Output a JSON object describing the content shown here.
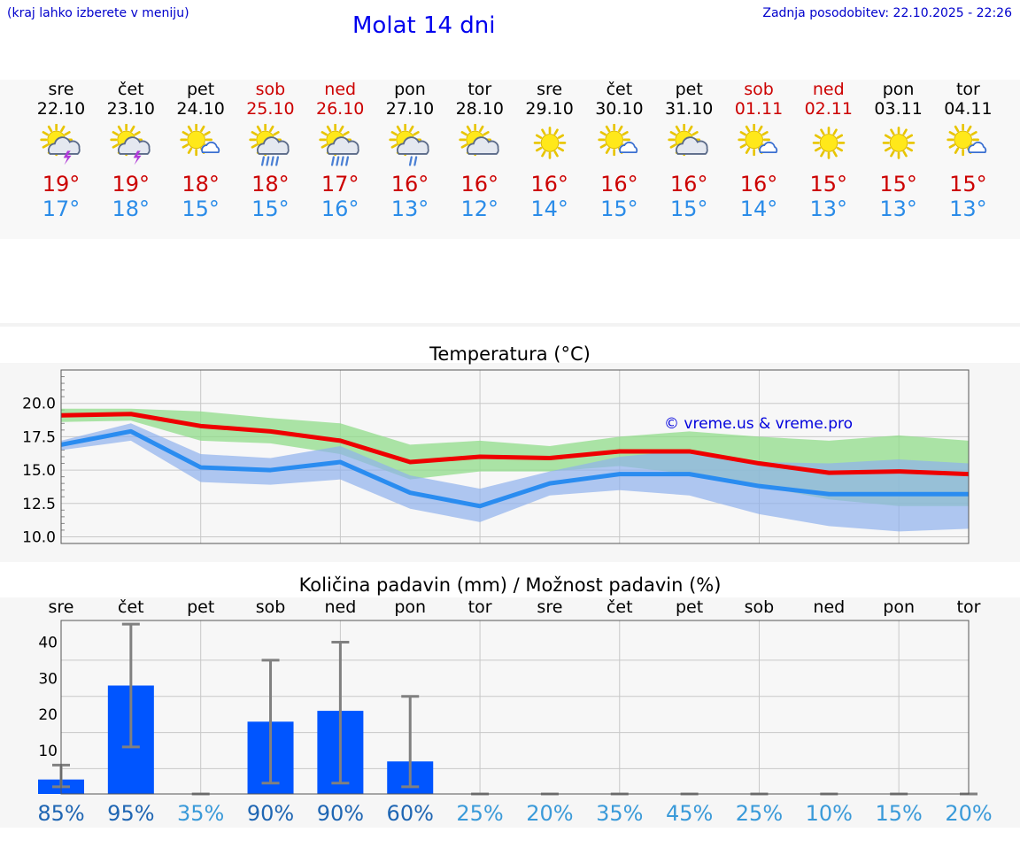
{
  "header": {
    "location_hint": "(kraj lahko izberete v meniju)",
    "title": "Molat 14 dni",
    "last_update": "Zadnja posodobitev: 22.10.2025 - 22:26"
  },
  "forecast": [
    {
      "day": "sre",
      "date": "22.10",
      "icon": "sun-cloud-thunder-icon",
      "max": "19°",
      "min": "17°",
      "weekend": false
    },
    {
      "day": "čet",
      "date": "23.10",
      "icon": "sun-cloud-thunder-icon",
      "max": "19°",
      "min": "18°",
      "weekend": false
    },
    {
      "day": "pet",
      "date": "24.10",
      "icon": "sun-small-cloud-icon",
      "max": "18°",
      "min": "15°",
      "weekend": false
    },
    {
      "day": "sob",
      "date": "25.10",
      "icon": "sun-cloud-rain-icon",
      "max": "18°",
      "min": "15°",
      "weekend": true
    },
    {
      "day": "ned",
      "date": "26.10",
      "icon": "sun-cloud-rain-icon",
      "max": "17°",
      "min": "16°",
      "weekend": true
    },
    {
      "day": "pon",
      "date": "27.10",
      "icon": "sun-cloud-light-rain-icon",
      "max": "16°",
      "min": "13°",
      "weekend": false
    },
    {
      "day": "tor",
      "date": "28.10",
      "icon": "sun-cloud-icon",
      "max": "16°",
      "min": "12°",
      "weekend": false
    },
    {
      "day": "sre",
      "date": "29.10",
      "icon": "sun-icon",
      "max": "16°",
      "min": "14°",
      "weekend": false
    },
    {
      "day": "čet",
      "date": "30.10",
      "icon": "sun-small-cloud-icon",
      "max": "16°",
      "min": "15°",
      "weekend": false
    },
    {
      "day": "pet",
      "date": "31.10",
      "icon": "sun-cloud-icon",
      "max": "16°",
      "min": "15°",
      "weekend": false
    },
    {
      "day": "sob",
      "date": "01.11",
      "icon": "sun-small-cloud-icon",
      "max": "16°",
      "min": "14°",
      "weekend": true
    },
    {
      "day": "ned",
      "date": "02.11",
      "icon": "sun-icon",
      "max": "15°",
      "min": "13°",
      "weekend": true
    },
    {
      "day": "pon",
      "date": "03.11",
      "icon": "sun-icon",
      "max": "15°",
      "min": "13°",
      "weekend": false
    },
    {
      "day": "tor",
      "date": "04.11",
      "icon": "sun-small-cloud-icon",
      "max": "15°",
      "min": "13°",
      "weekend": false
    }
  ],
  "colors": {
    "max_line": "#ee0000",
    "max_band": "#90dc8a",
    "min_line": "#2a8cf0",
    "min_band": "#8fb0ec",
    "bar": "#0055ff",
    "errorbar": "#808080",
    "prob_high": "#1f66b3",
    "prob_low": "#3a9ad9"
  },
  "chart_data": [
    {
      "type": "line",
      "title": "Temperatura (°C)",
      "xlabel": "",
      "ylabel": "",
      "ylim": [
        9.5,
        22.5
      ],
      "yticks": [
        "10.0",
        "12.5",
        "15.0",
        "17.5",
        "20.0"
      ],
      "grid": true,
      "watermark": "© vreme.us & vreme.pro",
      "x": [
        0,
        1,
        2,
        3,
        4,
        5,
        6,
        7,
        8,
        9,
        10,
        11,
        12,
        13
      ],
      "series": [
        {
          "name": "max",
          "values": [
            19.1,
            19.2,
            18.3,
            17.9,
            17.2,
            15.6,
            16.0,
            15.9,
            16.4,
            16.4,
            15.5,
            14.8,
            14.9,
            14.7
          ],
          "band_low": [
            18.6,
            18.7,
            17.2,
            17.0,
            16.2,
            14.3,
            14.9,
            14.9,
            15.3,
            14.7,
            13.8,
            12.8,
            12.3,
            12.3
          ],
          "band_high": [
            19.6,
            19.6,
            19.4,
            18.9,
            18.5,
            16.9,
            17.2,
            16.8,
            17.5,
            17.9,
            17.5,
            17.2,
            17.6,
            17.2
          ]
        },
        {
          "name": "min",
          "values": [
            16.9,
            17.9,
            15.2,
            15.0,
            15.6,
            13.3,
            12.3,
            14.0,
            14.7,
            14.7,
            13.8,
            13.2,
            13.2,
            13.2
          ],
          "band_low": [
            16.5,
            17.2,
            14.1,
            13.9,
            14.3,
            12.1,
            11.1,
            13.1,
            13.5,
            13.1,
            11.7,
            10.8,
            10.4,
            10.6
          ],
          "band_high": [
            17.2,
            18.5,
            16.2,
            15.9,
            16.8,
            14.6,
            13.6,
            14.9,
            16.0,
            16.5,
            15.6,
            15.5,
            15.8,
            15.5
          ]
        }
      ]
    },
    {
      "type": "bar",
      "title": "Količina padavin (mm) / Možnost padavin (%)",
      "categories": [
        "sre",
        "čet",
        "pet",
        "sob",
        "ned",
        "pon",
        "tor",
        "sre",
        "čet",
        "pet",
        "sob",
        "ned",
        "pon",
        "tor"
      ],
      "ylim": [
        -2,
        46
      ],
      "yticks": [
        "0",
        "10",
        "20",
        "30",
        "40"
      ],
      "grid": true,
      "values": [
        2,
        28,
        0,
        18,
        21,
        7,
        0,
        0,
        0,
        0,
        0,
        0,
        0,
        0
      ],
      "error_low": [
        0,
        11,
        0,
        1,
        1,
        0,
        0,
        0,
        0,
        0,
        0,
        0,
        0,
        0
      ],
      "error_high": [
        6,
        45,
        0,
        35,
        40,
        25,
        0,
        0,
        0,
        0,
        0,
        0,
        0,
        0
      ],
      "probability": [
        "85%",
        "95%",
        "35%",
        "90%",
        "90%",
        "60%",
        "25%",
        "20%",
        "35%",
        "45%",
        "25%",
        "10%",
        "15%",
        "20%"
      ]
    }
  ]
}
